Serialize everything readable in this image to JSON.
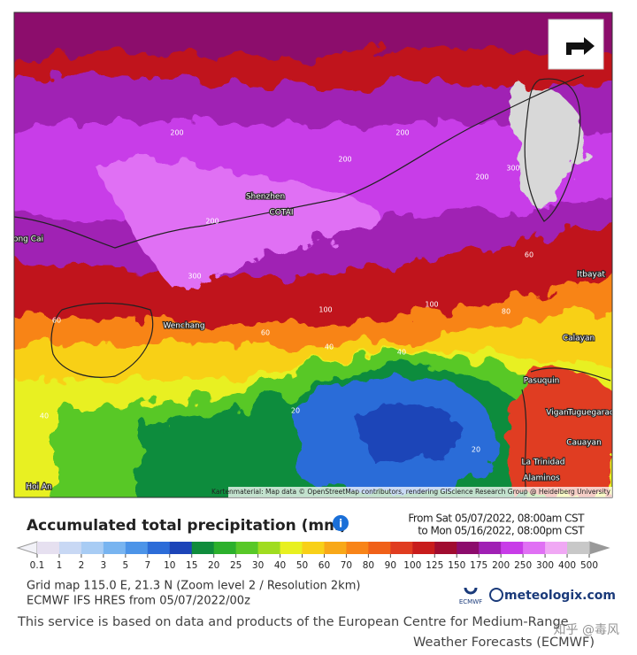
{
  "map": {
    "place_labels": [
      "Shenzhen",
      "COTAI",
      "Wenchang",
      "Itbayat",
      "Calayan",
      "Pasuquin",
      "Vigan",
      "Tuguegarao",
      "Cauayan",
      "La Trinidad",
      "Alaminos",
      "Hoi An",
      "ong Cai"
    ],
    "contour_labels": [
      "200",
      "200",
      "300",
      "200",
      "200",
      "300",
      "100",
      "60",
      "40",
      "40",
      "20",
      "20",
      "80",
      "60",
      "40",
      "200",
      "100",
      "60"
    ],
    "attribution": "Kartenmaterial: Map data © OpenStreetMap contributors, rendering GIScience Research Group @ Heidelberg University"
  },
  "legend": {
    "title": "Accumulated total precipitation (mm)",
    "from": "From Sat 05/07/2022, 08:00am CST",
    "to": "to Mon 05/16/2022, 08:00pm CST",
    "ticks": [
      0.1,
      1,
      2,
      3,
      5,
      7,
      10,
      15,
      20,
      25,
      30,
      40,
      50,
      60,
      70,
      80,
      90,
      100,
      125,
      150,
      175,
      200,
      250,
      300,
      400,
      500
    ],
    "colors": [
      "#e6e0f0",
      "#c8d8f4",
      "#a8ccf4",
      "#78b4f0",
      "#4c94e8",
      "#2c6cd8",
      "#1c44b8",
      "#108c3c",
      "#2cb02c",
      "#58c828",
      "#a0dc20",
      "#e8f020",
      "#f8d018",
      "#f8a818",
      "#f88418",
      "#f06018",
      "#e03c20",
      "#c81c1c",
      "#a00c30",
      "#8c0c6c",
      "#a020b4",
      "#c83ce8",
      "#e070f4",
      "#f0a8f4",
      "#c8c8c8"
    ]
  },
  "info": {
    "grid": "Grid map 115.0 E, 21.3 N (Zoom level 2 / Resolution 2km)",
    "model": "ECMWF IFS HRES from 05/07/2022/00z",
    "logo": "meteologix.com",
    "ecmwf": "ECMWF"
  },
  "footer": {
    "line1": "This service is based on data and products of the European Centre for Medium-Range",
    "line2": "Weather Forecasts (ECMWF)",
    "watermark": "知乎 @毒风"
  }
}
